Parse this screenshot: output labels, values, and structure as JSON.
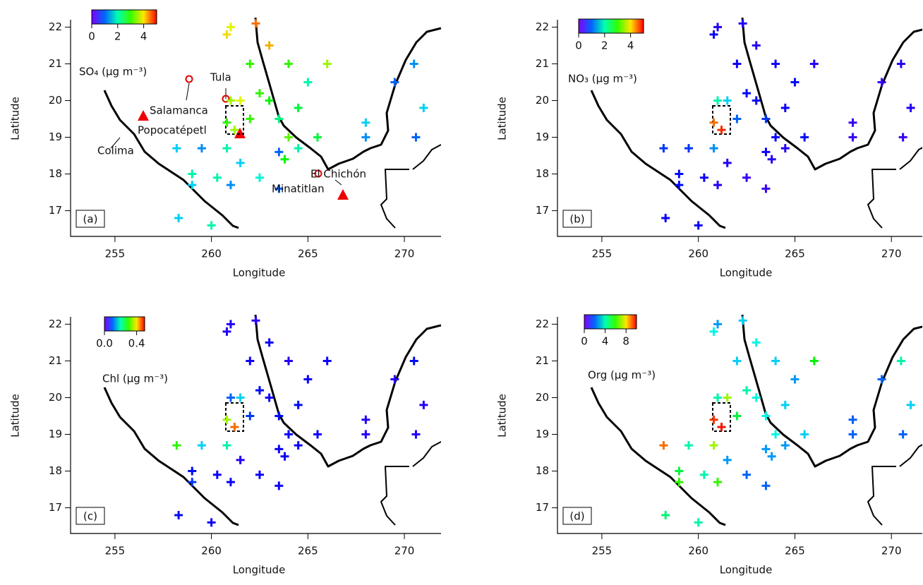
{
  "chart_data": [
    {
      "type": "scatter",
      "panel_label": "(a)",
      "colorbar_label": "SO₄ (μg m⁻³)",
      "xlabel": "Longitude",
      "ylabel": "Latitude",
      "xlim": [
        252.7,
        271.9
      ],
      "ylim": [
        16.3,
        22.2
      ],
      "xticks": [
        255,
        260,
        265,
        270
      ],
      "yticks": [
        17,
        18,
        19,
        20,
        21,
        22
      ],
      "cbar_lim": [
        0,
        5
      ],
      "cbar_ticks": [
        0,
        2,
        4
      ],
      "annotations": [
        "Tula",
        "Salamanca",
        "Popocatépetl",
        "Colima",
        "El Chichón",
        "Minatitlan"
      ],
      "x": [
        258.2,
        259.5,
        260.8,
        260.8,
        261.0,
        260.8,
        261.0,
        262.0,
        263.0,
        264.0,
        264.5,
        265.5,
        268.0,
        269.5,
        270.5,
        271.0,
        270.6,
        268.0,
        263.5,
        262.0,
        261.5,
        262.5,
        263.5,
        261.0,
        259.0,
        258.3,
        260.0,
        259.0,
        260.3,
        263.0,
        264.0,
        266.0,
        265.0,
        262.5,
        261.5,
        264.5,
        263.8,
        261.2,
        262.3,
        263.5
      ],
      "y": [
        18.7,
        18.7,
        18.7,
        19.4,
        20.0,
        21.8,
        22.0,
        21.0,
        20.0,
        19.0,
        18.7,
        19.0,
        19.4,
        20.5,
        21.0,
        19.8,
        19.0,
        19.0,
        19.5,
        19.5,
        18.3,
        17.9,
        18.6,
        17.7,
        17.7,
        16.8,
        16.6,
        18.0,
        17.9,
        21.5,
        21.0,
        21.0,
        20.5,
        20.2,
        20.0,
        19.8,
        18.4,
        19.2,
        22.1,
        17.6
      ],
      "values": [
        1.5,
        1.2,
        2.0,
        3.0,
        3.5,
        4.0,
        3.8,
        3.0,
        2.8,
        3.2,
        2.0,
        2.5,
        1.5,
        1.0,
        1.2,
        1.5,
        1.0,
        1.2,
        2.2,
        3.0,
        1.5,
        1.8,
        1.0,
        1.2,
        1.5,
        1.5,
        2.0,
        2.0,
        2.0,
        4.2,
        3.0,
        3.5,
        2.0,
        3.0,
        3.8,
        2.5,
        2.8,
        3.5,
        4.5,
        1.0
      ]
    },
    {
      "type": "scatter",
      "panel_label": "(b)",
      "colorbar_label": "NO₃ (μg m⁻³)",
      "xlabel": "Longitude",
      "ylabel": "Latitude",
      "xlim": [
        252.7,
        271.6
      ],
      "ylim": [
        16.3,
        22.2
      ],
      "xticks": [
        255,
        260,
        265,
        270
      ],
      "yticks": [
        17,
        18,
        19,
        20,
        21,
        22
      ],
      "cbar_lim": [
        0,
        5
      ],
      "cbar_ticks": [
        0,
        2,
        4
      ],
      "x": [
        258.2,
        259.5,
        260.8,
        260.8,
        261.0,
        260.8,
        261.0,
        262.0,
        263.0,
        264.0,
        264.5,
        265.5,
        268.0,
        269.5,
        270.5,
        271.0,
        270.6,
        268.0,
        263.5,
        262.0,
        261.5,
        262.5,
        263.5,
        261.0,
        259.0,
        258.3,
        260.0,
        259.0,
        260.3,
        263.0,
        264.0,
        266.0,
        265.0,
        262.5,
        261.5,
        264.5,
        263.8,
        261.2,
        262.3,
        263.5
      ],
      "y": [
        18.7,
        18.7,
        18.7,
        19.4,
        20.0,
        21.8,
        22.0,
        21.0,
        20.0,
        19.0,
        18.7,
        19.0,
        19.4,
        20.5,
        21.0,
        19.8,
        19.0,
        19.0,
        19.5,
        19.5,
        18.3,
        17.9,
        18.6,
        17.7,
        17.7,
        16.8,
        16.6,
        18.0,
        17.9,
        21.5,
        21.0,
        21.0,
        20.5,
        20.2,
        20.0,
        19.8,
        18.4,
        19.2,
        22.1,
        17.6
      ],
      "values": [
        0.8,
        0.8,
        1.2,
        4.5,
        2.0,
        0.5,
        0.4,
        0.5,
        0.6,
        0.5,
        0.4,
        0.6,
        0.3,
        0.3,
        0.4,
        0.4,
        0.3,
        0.3,
        0.8,
        1.0,
        0.4,
        0.3,
        0.5,
        0.4,
        0.6,
        0.5,
        0.5,
        0.6,
        0.5,
        0.4,
        0.5,
        0.4,
        0.6,
        0.6,
        1.5,
        0.5,
        0.4,
        4.8,
        0.4,
        0.3
      ]
    },
    {
      "type": "scatter",
      "panel_label": "(c)",
      "colorbar_label": "Chl (μg m⁻³)",
      "xlabel": "Longitude",
      "ylabel": "Latitude",
      "xlim": [
        252.7,
        271.9
      ],
      "ylim": [
        16.3,
        22.2
      ],
      "xticks": [
        255,
        260,
        265,
        270
      ],
      "yticks": [
        17,
        18,
        19,
        20,
        21,
        22
      ],
      "cbar_lim": [
        0,
        0.5
      ],
      "cbar_ticks": [
        {
          "value": 0,
          "label": "0.0"
        },
        0.4
      ],
      "x": [
        258.2,
        259.5,
        260.8,
        260.8,
        261.0,
        260.8,
        261.0,
        262.0,
        263.0,
        264.0,
        264.5,
        265.5,
        268.0,
        269.5,
        270.5,
        271.0,
        270.6,
        268.0,
        263.5,
        262.0,
        261.5,
        262.5,
        263.5,
        261.0,
        259.0,
        258.3,
        260.0,
        259.0,
        260.3,
        263.0,
        264.0,
        266.0,
        265.0,
        262.5,
        261.5,
        264.5,
        263.8,
        261.2,
        262.3,
        263.5
      ],
      "y": [
        18.7,
        18.7,
        18.7,
        19.4,
        20.0,
        21.8,
        22.0,
        21.0,
        20.0,
        19.0,
        18.7,
        19.0,
        19.4,
        20.5,
        21.0,
        19.8,
        19.0,
        19.0,
        19.5,
        19.5,
        18.3,
        17.9,
        18.6,
        17.7,
        17.7,
        16.8,
        16.6,
        18.0,
        17.9,
        21.5,
        21.0,
        21.0,
        20.5,
        20.2,
        20.0,
        19.8,
        18.4,
        19.2,
        22.1,
        17.6
      ],
      "values": [
        0.3,
        0.15,
        0.2,
        0.35,
        0.1,
        0.04,
        0.04,
        0.05,
        0.05,
        0.05,
        0.05,
        0.05,
        0.04,
        0.04,
        0.06,
        0.04,
        0.04,
        0.04,
        0.06,
        0.08,
        0.04,
        0.05,
        0.05,
        0.05,
        0.08,
        0.06,
        0.05,
        0.06,
        0.05,
        0.05,
        0.04,
        0.05,
        0.05,
        0.06,
        0.15,
        0.06,
        0.05,
        0.45,
        0.04,
        0.05
      ]
    },
    {
      "type": "scatter",
      "panel_label": "(d)",
      "colorbar_label": "Org (μg m⁻³)",
      "xlabel": "Longitude",
      "ylabel": "Latitude",
      "xlim": [
        252.7,
        271.6
      ],
      "ylim": [
        16.3,
        22.2
      ],
      "xticks": [
        255,
        260,
        265,
        270
      ],
      "yticks": [
        17,
        18,
        19,
        20,
        21,
        22
      ],
      "cbar_lim": [
        0,
        10
      ],
      "cbar_ticks": [
        0,
        4,
        8
      ],
      "x": [
        258.2,
        259.5,
        260.8,
        260.8,
        261.0,
        260.8,
        261.0,
        262.0,
        263.0,
        264.0,
        264.5,
        265.5,
        268.0,
        269.5,
        270.5,
        271.0,
        270.6,
        268.0,
        263.5,
        262.0,
        261.5,
        262.5,
        263.5,
        261.0,
        259.0,
        258.3,
        260.0,
        259.0,
        260.3,
        263.0,
        264.0,
        266.0,
        265.0,
        262.5,
        261.5,
        264.5,
        263.8,
        261.2,
        262.3,
        263.5
      ],
      "y": [
        18.7,
        18.7,
        18.7,
        19.4,
        20.0,
        21.8,
        22.0,
        21.0,
        20.0,
        19.0,
        18.7,
        19.0,
        19.4,
        20.5,
        21.0,
        19.8,
        19.0,
        19.0,
        19.5,
        19.5,
        18.3,
        17.9,
        18.6,
        17.7,
        17.7,
        16.8,
        16.6,
        18.0,
        17.9,
        21.5,
        21.0,
        21.0,
        20.5,
        20.2,
        20.0,
        19.8,
        18.4,
        19.2,
        22.1,
        17.6
      ],
      "values": [
        9.0,
        4.0,
        7.0,
        9.5,
        4.0,
        3.5,
        2.5,
        3.0,
        3.5,
        3.5,
        2.5,
        3.0,
        2.0,
        2.0,
        4.0,
        3.0,
        2.0,
        2.0,
        3.5,
        5.0,
        2.5,
        2.0,
        2.5,
        6.0,
        6.0,
        4.5,
        4.0,
        5.0,
        4.0,
        3.5,
        3.0,
        5.5,
        2.5,
        4.0,
        7.0,
        3.0,
        2.5,
        9.8,
        3.0,
        2.0
      ]
    }
  ]
}
